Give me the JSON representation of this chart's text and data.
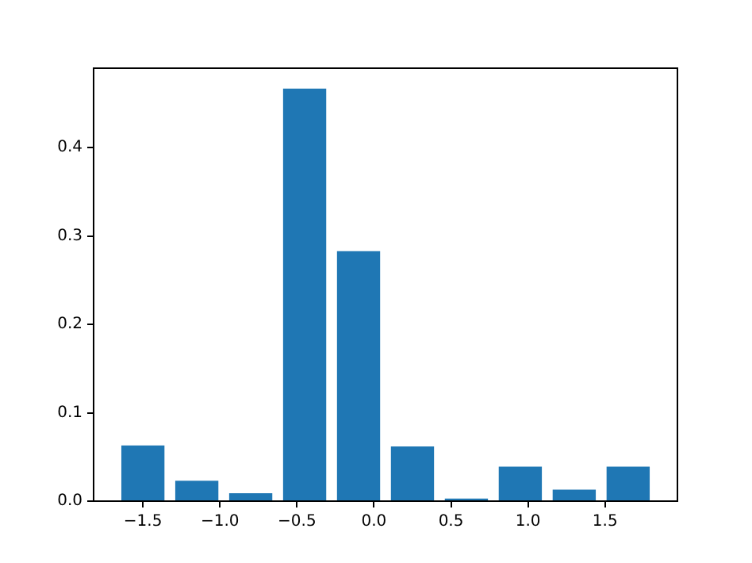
{
  "chart_data": {
    "type": "bar",
    "x": [
      -1.5,
      -1.15,
      -0.8,
      -0.45,
      -0.1,
      0.25,
      0.6,
      0.95,
      1.3,
      1.65
    ],
    "values": [
      0.063,
      0.023,
      0.009,
      0.467,
      0.283,
      0.062,
      0.003,
      0.039,
      0.013,
      0.039
    ],
    "color": "#1f77b4",
    "xlim": [
      -1.82,
      1.97
    ],
    "xticks": [
      {
        "value": -1.5,
        "label": "−1.5"
      },
      {
        "value": -1.0,
        "label": "−1.0"
      },
      {
        "value": -0.5,
        "label": "−0.5"
      },
      {
        "value": 0.0,
        "label": "0.0"
      },
      {
        "value": 0.5,
        "label": "0.5"
      },
      {
        "value": 1.0,
        "label": "1.0"
      },
      {
        "value": 1.5,
        "label": "1.5"
      }
    ],
    "ylim": [
      0,
      0.49
    ],
    "yticks": [
      {
        "value": 0,
        "label": "0.0"
      },
      {
        "value": 0.1,
        "label": "0.1"
      },
      {
        "value": 0.2,
        "label": "0.2"
      },
      {
        "value": 0.3,
        "label": "0.3"
      },
      {
        "value": 0.4,
        "label": "0.4"
      }
    ],
    "grid": false
  }
}
